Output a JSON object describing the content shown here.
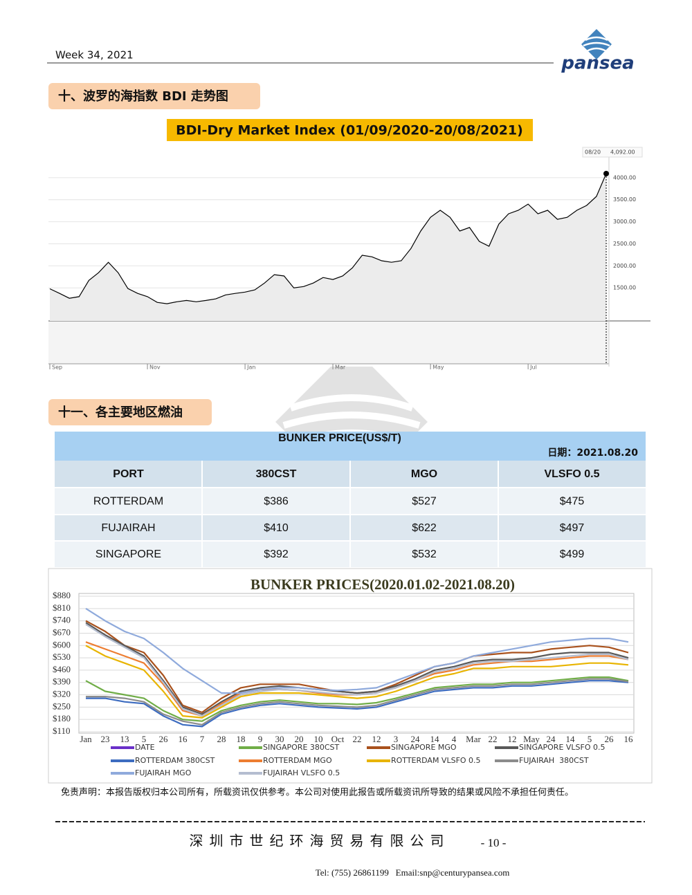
{
  "header": {
    "week": "Week 34, 2021",
    "logo": "pansea"
  },
  "sections": [
    "十、波罗的海指数 BDI 走势图",
    "十一、各主要地区燃油"
  ],
  "bdi_chart": {
    "type": "line",
    "title": "BDI-Dry Market Index (01/09/2020-20/08/2021)",
    "categories": [
      "Sep",
      null,
      null,
      null,
      null,
      null,
      null,
      null,
      null,
      null,
      "Nov",
      null,
      null,
      null,
      null,
      null,
      null,
      null,
      null,
      null,
      "Jan",
      null,
      null,
      null,
      null,
      null,
      null,
      null,
      null,
      "Mar",
      null,
      null,
      null,
      null,
      null,
      null,
      null,
      null,
      null,
      "May",
      null,
      null,
      null,
      null,
      null,
      null,
      null,
      null,
      null,
      "Jul",
      null,
      null,
      null,
      null,
      null,
      null,
      null,
      null
    ],
    "values": [
      1480,
      1375,
      1265,
      1300,
      1670,
      1845,
      2080,
      1845,
      1485,
      1375,
      1300,
      1170,
      1140,
      1185,
      1215,
      1185,
      1215,
      1250,
      1340,
      1375,
      1405,
      1455,
      1610,
      1800,
      1770,
      1500,
      1530,
      1610,
      1735,
      1690,
      1770,
      1955,
      2240,
      2205,
      2115,
      2080,
      2115,
      2395,
      2790,
      3100,
      3260,
      3100,
      2790,
      2870,
      2555,
      2445,
      2945,
      3180,
      3260,
      3400,
      3180,
      3260,
      3055,
      3100,
      3260,
      3370,
      3575,
      4092
    ],
    "color": "#000000",
    "ylim": [
      750,
      4500
    ],
    "yticks": [
      {
        "value": 1500,
        "label": "1500.00"
      },
      {
        "value": 2000,
        "label": "2000.00"
      },
      {
        "value": 2500,
        "label": "2500.00"
      },
      {
        "value": 3000,
        "label": "3000.00"
      },
      {
        "value": 3500,
        "label": "3500.00"
      },
      {
        "value": 4000,
        "label": "4000.00"
      }
    ],
    "grid": true,
    "end_date": "08/20",
    "end_value_label": "4,092.00"
  },
  "table": {
    "title": "BUNKER PRICE(US$/T)",
    "date": "日期：2021.08.20",
    "header": [
      "PORT",
      "380CST",
      "MGO",
      "VLSFO 0.5"
    ],
    "rows": [
      [
        "ROTTERDAM",
        "$386",
        "$527",
        "$475"
      ],
      [
        "FUJAIRAH",
        "$410",
        "$622",
        "$497"
      ],
      [
        "SINGAPORE",
        "$392",
        "$532",
        "$499"
      ]
    ]
  },
  "bunker_chart": {
    "type": "line",
    "title": "BUNKER PRICES(2020.01.02-2021.08.20)",
    "categories": [
      "Jan",
      "23",
      "13",
      "5",
      "26",
      "16",
      "7",
      "28",
      "18",
      "9",
      "30",
      "20",
      "10",
      "Oct",
      "22",
      "12",
      "3",
      "24",
      "14",
      "4",
      "Mar",
      "22",
      "12",
      "May",
      "24",
      "14",
      "5",
      "26",
      "16"
    ],
    "ylim": [
      110,
      880
    ],
    "yticks": [
      {
        "value": 110,
        "label": "$110"
      },
      {
        "value": 180,
        "label": "$180"
      },
      {
        "value": 250,
        "label": "$250"
      },
      {
        "value": 320,
        "label": "$320"
      },
      {
        "value": 390,
        "label": "$390"
      },
      {
        "value": 460,
        "label": "$460"
      },
      {
        "value": 530,
        "label": "$530"
      },
      {
        "value": 600,
        "label": "$600"
      },
      {
        "value": 670,
        "label": "$670"
      },
      {
        "value": 740,
        "label": "$740"
      },
      {
        "value": 810,
        "label": "$810"
      },
      {
        "value": 880,
        "label": "$880"
      }
    ],
    "grid": true,
    "series": [
      {
        "name": "DATE",
        "color": "#6a30c8",
        "values": [
          null,
          null,
          null,
          null,
          null,
          null,
          null,
          null,
          null,
          null,
          null,
          null,
          null,
          null,
          null,
          null,
          null,
          null,
          null,
          null,
          null,
          null,
          null,
          null,
          null,
          null,
          null,
          null,
          null
        ]
      },
      {
        "name": "SINGAPORE 380CST",
        "color": "#70ad47",
        "values": [
          400,
          340,
          320,
          300,
          230,
          180,
          170,
          230,
          260,
          280,
          290,
          280,
          270,
          270,
          265,
          275,
          300,
          330,
          360,
          370,
          380,
          380,
          390,
          390,
          400,
          410,
          420,
          420,
          400
        ]
      },
      {
        "name": "SINGAPORE MGO",
        "color": "#a9511c",
        "values": [
          740,
          680,
          600,
          560,
          430,
          260,
          220,
          300,
          360,
          380,
          380,
          380,
          360,
          340,
          330,
          340,
          380,
          430,
          480,
          500,
          540,
          550,
          560,
          560,
          580,
          590,
          600,
          590,
          560
        ]
      },
      {
        "name": "SINGAPORE VLSFO 0.5",
        "color": "#595959",
        "values": [
          730,
          660,
          600,
          540,
          400,
          250,
          210,
          280,
          340,
          360,
          370,
          360,
          350,
          340,
          330,
          340,
          370,
          410,
          460,
          480,
          510,
          520,
          520,
          530,
          550,
          560,
          560,
          560,
          530
        ]
      },
      {
        "name": "ROTTERDAM 380CST",
        "color": "#3d6cc0",
        "values": [
          300,
          300,
          280,
          270,
          200,
          150,
          140,
          210,
          240,
          260,
          270,
          260,
          250,
          245,
          240,
          250,
          280,
          310,
          340,
          350,
          360,
          360,
          370,
          370,
          380,
          390,
          400,
          400,
          390
        ]
      },
      {
        "name": "ROTTERDAM MGO",
        "color": "#ed7d31",
        "values": [
          620,
          580,
          540,
          500,
          380,
          230,
          200,
          270,
          330,
          350,
          350,
          345,
          330,
          320,
          320,
          330,
          360,
          400,
          440,
          460,
          490,
          500,
          510,
          510,
          520,
          530,
          540,
          540,
          520
        ]
      },
      {
        "name": "ROTTERDAM VLSFO 0.5",
        "color": "#e8b400",
        "values": [
          600,
          540,
          500,
          460,
          340,
          200,
          190,
          250,
          310,
          330,
          330,
          330,
          320,
          310,
          300,
          310,
          340,
          380,
          420,
          440,
          470,
          470,
          480,
          480,
          480,
          490,
          500,
          500,
          490
        ]
      },
      {
        "name": "FUJAIRAH  380CST",
        "color": "#8c8c8c",
        "values": [
          310,
          310,
          300,
          280,
          210,
          170,
          150,
          220,
          250,
          270,
          280,
          270,
          260,
          255,
          250,
          260,
          290,
          320,
          350,
          360,
          370,
          370,
          380,
          380,
          390,
          400,
          410,
          410,
          395
        ]
      },
      {
        "name": "FUJAIRAH MGO",
        "color": "#8faadc",
        "values": [
          810,
          740,
          680,
          640,
          560,
          470,
          400,
          330,
          330,
          350,
          360,
          360,
          350,
          345,
          350,
          360,
          400,
          440,
          480,
          500,
          540,
          560,
          580,
          600,
          620,
          630,
          640,
          640,
          620
        ]
      },
      {
        "name": "FUJAIRAH VLSFO 0.5",
        "color": "#b4bdd0",
        "values": [
          720,
          650,
          590,
          530,
          390,
          240,
          200,
          260,
          320,
          340,
          350,
          345,
          335,
          325,
          320,
          330,
          360,
          400,
          450,
          470,
          500,
          510,
          510,
          520,
          530,
          540,
          550,
          550,
          520
        ]
      }
    ]
  },
  "disclaimer": "免责声明：本报告版权归本公司所有，所载资讯仅供参考。本公司对使用此报告或所载资讯所导致的结果或风险不承担任何责任。",
  "footer": {
    "company": "深圳市世纪环海贸易有限公司",
    "page": "- 10 -",
    "contact": "Tel: (755) 26861199   Email:snp@centurypansea.com"
  }
}
